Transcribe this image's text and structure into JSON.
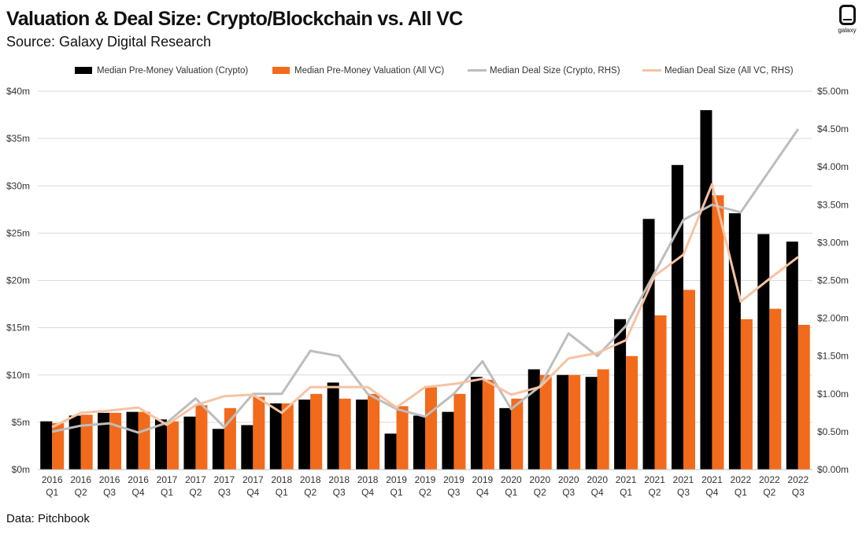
{
  "header": {
    "title": "Valuation & Deal Size: Crypto/Blockchain vs. All VC",
    "subtitle": "Source: Galaxy Digital Research",
    "logo_text": "galaxy"
  },
  "footer": {
    "note": "Data: Pitchbook"
  },
  "colors": {
    "crypto_valuation": "#000000",
    "allvc_valuation": "#f26a1b",
    "crypto_deal": "#bdbdbd",
    "allvc_deal": "#f6c3a3",
    "grid": "#d9d9d9"
  },
  "chart_data": {
    "type": "bar",
    "title": "Valuation & Deal Size: Crypto/Blockchain vs. All VC",
    "categories": [
      [
        "2016",
        "Q1"
      ],
      [
        "2016",
        "Q2"
      ],
      [
        "2016",
        "Q3"
      ],
      [
        "2016",
        "Q4"
      ],
      [
        "2017",
        "Q1"
      ],
      [
        "2017",
        "Q2"
      ],
      [
        "2017",
        "Q3"
      ],
      [
        "2017",
        "Q4"
      ],
      [
        "2018",
        "Q1"
      ],
      [
        "2018",
        "Q2"
      ],
      [
        "2018",
        "Q3"
      ],
      [
        "2018",
        "Q4"
      ],
      [
        "2019",
        "Q1"
      ],
      [
        "2019",
        "Q2"
      ],
      [
        "2019",
        "Q3"
      ],
      [
        "2019",
        "Q4"
      ],
      [
        "2020",
        "Q1"
      ],
      [
        "2020",
        "Q2"
      ],
      [
        "2020",
        "Q3"
      ],
      [
        "2020",
        "Q4"
      ],
      [
        "2021",
        "Q1"
      ],
      [
        "2021",
        "Q2"
      ],
      [
        "2021",
        "Q3"
      ],
      [
        "2021",
        "Q4"
      ],
      [
        "2022",
        "Q1"
      ],
      [
        "2022",
        "Q2"
      ],
      [
        "2022",
        "Q3"
      ]
    ],
    "series": [
      {
        "name": "Median Pre-Money Valuation (Crypto)",
        "type": "bar",
        "axis": "left",
        "values": [
          5.1,
          5.7,
          6.0,
          6.1,
          5.3,
          5.6,
          4.3,
          4.7,
          7.0,
          7.4,
          9.2,
          7.4,
          3.8,
          5.7,
          6.1,
          9.8,
          6.5,
          10.6,
          10.0,
          9.8,
          15.9,
          26.5,
          32.2,
          38.0,
          27.1,
          24.9,
          24.1
        ]
      },
      {
        "name": "Median Pre-Money Valuation (All VC)",
        "type": "bar",
        "axis": "left",
        "values": [
          4.9,
          5.8,
          6.0,
          6.1,
          5.1,
          6.8,
          6.5,
          7.7,
          7.0,
          8.0,
          7.5,
          8.0,
          6.7,
          8.7,
          8.0,
          9.5,
          7.5,
          10.0,
          10.0,
          10.6,
          12.0,
          16.3,
          19.0,
          29.0,
          15.9,
          17.0,
          15.3
        ]
      },
      {
        "name": "Median Deal Size (Crypto, RHS)",
        "type": "line",
        "axis": "right",
        "values": [
          0.5,
          0.58,
          0.61,
          0.49,
          0.62,
          0.94,
          0.56,
          1.0,
          1.0,
          1.57,
          1.5,
          1.0,
          0.8,
          0.7,
          1.0,
          1.43,
          0.8,
          1.1,
          1.8,
          1.5,
          1.9,
          2.6,
          3.3,
          3.5,
          3.4,
          3.95,
          4.5
        ]
      },
      {
        "name": "Median Deal Size (All VC, RHS)",
        "type": "line",
        "axis": "right",
        "values": [
          0.56,
          0.75,
          0.78,
          0.82,
          0.59,
          0.85,
          0.97,
          0.99,
          0.75,
          1.09,
          1.09,
          1.09,
          0.82,
          1.09,
          1.13,
          1.2,
          0.99,
          1.09,
          1.47,
          1.54,
          1.71,
          2.56,
          2.84,
          3.77,
          2.22,
          2.52,
          2.81
        ]
      }
    ],
    "y_left": {
      "min": 0,
      "max": 40,
      "step": 5,
      "ticks": [
        "$0m",
        "$5m",
        "$10m",
        "$15m",
        "$20m",
        "$25m",
        "$30m",
        "$35m",
        "$40m"
      ]
    },
    "y_right": {
      "min": 0,
      "max": 5,
      "step": 0.5,
      "ticks": [
        "$0.00m",
        "$0.50m",
        "$1.00m",
        "$1.50m",
        "$2.00m",
        "$2.50m",
        "$3.00m",
        "$3.50m",
        "$4.00m",
        "$4.50m",
        "$5.00m"
      ]
    },
    "grid": true,
    "legend_position": "top-center"
  }
}
